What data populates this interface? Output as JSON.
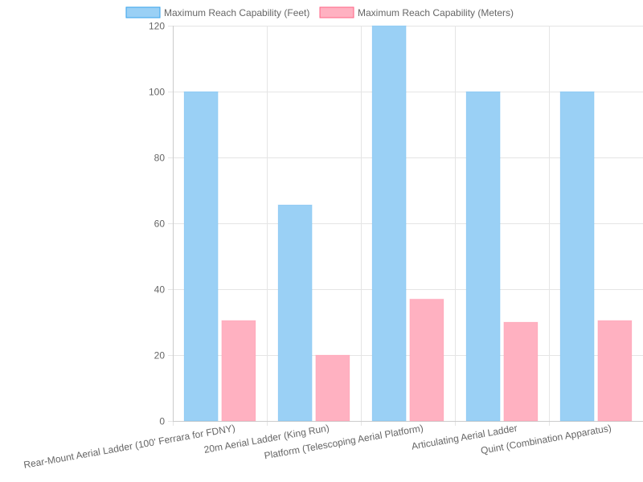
{
  "chart_data": {
    "type": "bar",
    "categories": [
      "Rear-Mount Aerial Ladder (100' Ferrara for FDNY)",
      "20m Aerial Ladder (King Run)",
      "Platform (Telescoping Aerial Platform)",
      "Articulating Aerial Ladder",
      "Quint (Combination Apparatus)"
    ],
    "series": [
      {
        "name": "Maximum Reach Capability (Feet)",
        "values": [
          100,
          65.6,
          120,
          100,
          100
        ],
        "color": "#9ad0f5",
        "border_color": "#36a2eb"
      },
      {
        "name": "Maximum Reach Capability (Meters)",
        "values": [
          30.5,
          20,
          37,
          30,
          30.5
        ],
        "color": "#ffb1c1",
        "border_color": "#ff6384"
      }
    ],
    "y_ticks": [
      "0",
      "20",
      "40",
      "60",
      "80",
      "100",
      "120"
    ],
    "ylim": [
      0,
      120
    ],
    "grid": true,
    "legend_position": "top"
  }
}
